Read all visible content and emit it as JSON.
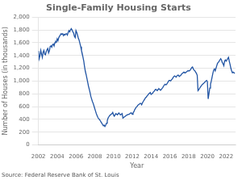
{
  "chart_data": {
    "type": "line",
    "title": "Single-Family Housing Starts",
    "xlabel": "Year",
    "ylabel": "Number of Houses (in thousands)",
    "annotation": "Source: Federal Reserve Bank of St. Louis",
    "color": "#2255A4",
    "grid": "y",
    "xlim": [
      2002,
      2023
    ],
    "xticks": [
      2002,
      2004,
      2006,
      2008,
      2010,
      2012,
      2014,
      2016,
      2018,
      2020,
      2022
    ],
    "ylim": [
      0,
      2000
    ],
    "yticks": [
      0,
      200,
      400,
      600,
      800,
      {
        "value": 1000,
        "label": "1,000"
      },
      {
        "value": 1200,
        "label": "1,200"
      },
      {
        "value": 1400,
        "label": "1,400"
      },
      {
        "value": 1600,
        "label": "1,600"
      },
      {
        "value": 1800,
        "label": "1,800"
      },
      {
        "value": 2000,
        "label": "2,000"
      }
    ],
    "x": [
      2002.0,
      2002.083,
      2002.167,
      2002.25,
      2002.333,
      2002.417,
      2002.5,
      2002.583,
      2002.667,
      2002.75,
      2002.833,
      2002.917,
      2003.0,
      2003.083,
      2003.167,
      2003.25,
      2003.333,
      2003.417,
      2003.5,
      2003.583,
      2003.667,
      2003.75,
      2003.833,
      2003.917,
      2004.0,
      2004.083,
      2004.167,
      2004.25,
      2004.333,
      2004.417,
      2004.5,
      2004.583,
      2004.667,
      2004.75,
      2004.833,
      2004.917,
      2005.0,
      2005.083,
      2005.167,
      2005.25,
      2005.333,
      2005.417,
      2005.5,
      2005.583,
      2005.667,
      2005.75,
      2005.833,
      2005.917,
      2006.0,
      2006.083,
      2006.167,
      2006.25,
      2006.333,
      2006.417,
      2006.5,
      2006.583,
      2006.667,
      2006.75,
      2006.833,
      2006.917,
      2007.0,
      2007.083,
      2007.167,
      2007.25,
      2007.333,
      2007.417,
      2007.5,
      2007.583,
      2007.667,
      2007.75,
      2007.833,
      2007.917,
      2008.0,
      2008.083,
      2008.167,
      2008.25,
      2008.333,
      2008.417,
      2008.5,
      2008.583,
      2008.667,
      2008.75,
      2008.833,
      2008.917,
      2009.0,
      2009.083,
      2009.167,
      2009.25,
      2009.333,
      2009.417,
      2009.5,
      2009.583,
      2009.667,
      2009.75,
      2009.833,
      2009.917,
      2010.0,
      2010.083,
      2010.167,
      2010.25,
      2010.333,
      2010.417,
      2010.5,
      2010.583,
      2010.667,
      2010.75,
      2010.833,
      2010.917,
      2011.0,
      2011.083,
      2011.167,
      2011.25,
      2011.333,
      2011.417,
      2011.5,
      2011.583,
      2011.667,
      2011.75,
      2011.833,
      2011.917,
      2012.0,
      2012.083,
      2012.167,
      2012.25,
      2012.333,
      2012.417,
      2012.5,
      2012.583,
      2012.667,
      2012.75,
      2012.833,
      2012.917,
      2013.0,
      2013.083,
      2013.167,
      2013.25,
      2013.333,
      2013.417,
      2013.5,
      2013.583,
      2013.667,
      2013.75,
      2013.833,
      2013.917,
      2014.0,
      2014.083,
      2014.167,
      2014.25,
      2014.333,
      2014.417,
      2014.5,
      2014.583,
      2014.667,
      2014.75,
      2014.833,
      2014.917,
      2015.0,
      2015.083,
      2015.167,
      2015.25,
      2015.333,
      2015.417,
      2015.5,
      2015.583,
      2015.667,
      2015.75,
      2015.833,
      2015.917,
      2016.0,
      2016.083,
      2016.167,
      2016.25,
      2016.333,
      2016.417,
      2016.5,
      2016.583,
      2016.667,
      2016.75,
      2016.833,
      2016.917,
      2017.0,
      2017.083,
      2017.167,
      2017.25,
      2017.333,
      2017.417,
      2017.5,
      2017.583,
      2017.667,
      2017.75,
      2017.833,
      2017.917,
      2018.0,
      2018.083,
      2018.167,
      2018.25,
      2018.333,
      2018.417,
      2018.5,
      2018.583,
      2018.667,
      2018.75,
      2018.833,
      2018.917,
      2019.0,
      2019.083,
      2019.167,
      2019.25,
      2019.333,
      2019.417,
      2019.5,
      2019.583,
      2019.667,
      2019.75,
      2019.833,
      2019.917,
      2020.0,
      2020.083,
      2020.167,
      2020.25,
      2020.333,
      2020.417,
      2020.5,
      2020.583,
      2020.667,
      2020.75,
      2020.833,
      2020.917,
      2021.0,
      2021.083,
      2021.167,
      2021.25,
      2021.333,
      2021.417,
      2021.5,
      2021.583,
      2021.667,
      2021.75,
      2021.833,
      2021.917,
      2022.0,
      2022.083,
      2022.167,
      2022.25,
      2022.333,
      2022.417,
      2022.5,
      2022.583,
      2022.667,
      2022.75,
      2022.833,
      2022.917
    ],
    "values": [
      1470,
      1350,
      1400,
      1480,
      1420,
      1370,
      1450,
      1480,
      1420,
      1410,
      1460,
      1490,
      1510,
      1440,
      1470,
      1540,
      1550,
      1530,
      1570,
      1580,
      1550,
      1600,
      1620,
      1610,
      1660,
      1630,
      1680,
      1700,
      1720,
      1740,
      1730,
      1740,
      1710,
      1730,
      1720,
      1740,
      1740,
      1720,
      1760,
      1790,
      1770,
      1800,
      1820,
      1800,
      1770,
      1750,
      1700,
      1680,
      1790,
      1760,
      1720,
      1670,
      1640,
      1590,
      1540,
      1480,
      1430,
      1370,
      1310,
      1220,
      1150,
      1100,
      1040,
      980,
      920,
      870,
      820,
      760,
      720,
      680,
      650,
      610,
      570,
      530,
      490,
      460,
      430,
      410,
      400,
      380,
      360,
      340,
      320,
      300,
      310,
      290,
      310,
      340,
      380,
      420,
      440,
      460,
      470,
      480,
      490,
      510,
      470,
      450,
      470,
      490,
      480,
      470,
      490,
      500,
      480,
      470,
      480,
      490,
      420,
      430,
      440,
      450,
      460,
      470,
      470,
      480,
      480,
      490,
      500,
      500,
      480,
      500,
      520,
      550,
      570,
      590,
      600,
      620,
      630,
      640,
      650,
      650,
      630,
      660,
      680,
      700,
      720,
      740,
      750,
      770,
      780,
      800,
      810,
      820,
      790,
      800,
      810,
      830,
      840,
      860,
      870,
      860,
      850,
      870,
      880,
      870,
      855,
      865,
      885,
      900,
      920,
      940,
      950,
      940,
      950,
      970,
      990,
      1010,
      1010,
      1000,
      1020,
      1030,
      1050,
      1070,
      1080,
      1070,
      1060,
      1080,
      1090,
      1090,
      1070,
      1080,
      1090,
      1110,
      1120,
      1130,
      1140,
      1130,
      1130,
      1140,
      1150,
      1160,
      1160,
      1160,
      1170,
      1190,
      1210,
      1220,
      1190,
      1170,
      1160,
      1140,
      1120,
      1090,
      850,
      865,
      885,
      905,
      920,
      940,
      950,
      960,
      975,
      985,
      1000,
      1010,
      990,
      720,
      800,
      890,
      950,
      1000,
      1060,
      1120,
      1170,
      1190,
      1160,
      1200,
      1240,
      1280,
      1290,
      1310,
      1330,
      1350,
      1330,
      1290,
      1270,
      1240,
      1310,
      1330,
      1310,
      1330,
      1350,
      1370,
      1310,
      1260,
      1200,
      1160,
      1130,
      1140,
      1130,
      1120
    ]
  }
}
